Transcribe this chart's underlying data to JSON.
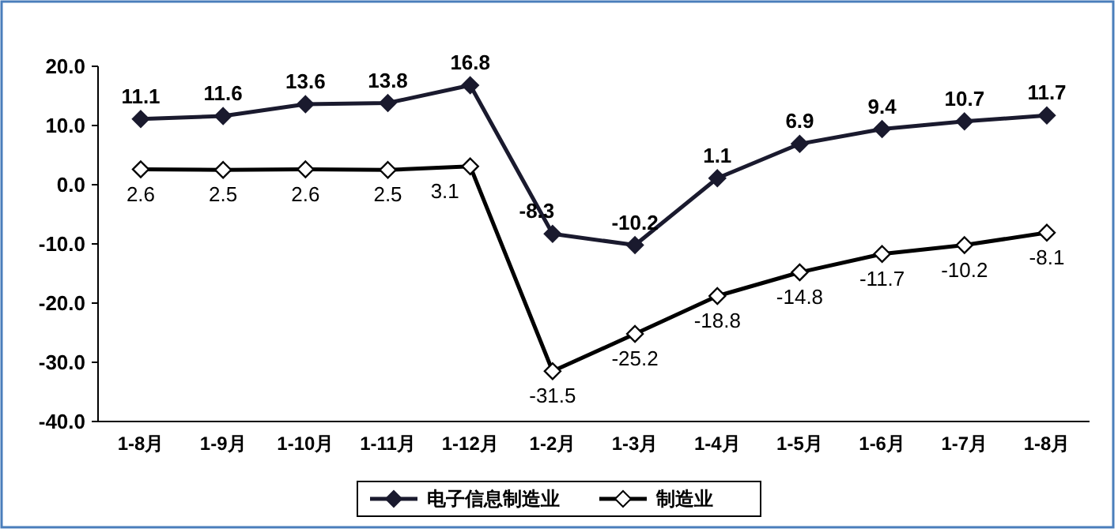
{
  "chart_data": {
    "type": "line",
    "categories": [
      "1-8月",
      "1-9月",
      "1-10月",
      "1-11月",
      "1-12月",
      "1-2月",
      "1-3月",
      "1-4月",
      "1-5月",
      "1-6月",
      "1-7月",
      "1-8月"
    ],
    "series": [
      {
        "name": "电子信息制造业",
        "color": "#1a1a2e",
        "values": [
          11.1,
          11.6,
          13.6,
          13.8,
          16.8,
          -8.3,
          -10.2,
          1.1,
          6.9,
          9.4,
          10.7,
          11.7
        ]
      },
      {
        "name": "制造业",
        "color": "#000000",
        "values": [
          2.6,
          2.5,
          2.6,
          2.5,
          3.1,
          -31.5,
          -25.2,
          -18.8,
          -14.8,
          -11.7,
          -10.2,
          -8.1
        ]
      }
    ],
    "ylim": [
      -40,
      20
    ],
    "yticks": [
      {
        "value": 20,
        "label": "20.0"
      },
      {
        "value": 10,
        "label": "10.0"
      },
      {
        "value": 0,
        "label": "0.0"
      },
      {
        "value": -10,
        "label": "-10.0"
      },
      {
        "value": -20,
        "label": "-20.0"
      },
      {
        "value": -30,
        "label": "-30.0"
      },
      {
        "value": -40,
        "label": "-40.0"
      }
    ],
    "data_labels": true,
    "marker": "diamond",
    "line_style": "solid",
    "legend": "bottom",
    "grid": false
  }
}
